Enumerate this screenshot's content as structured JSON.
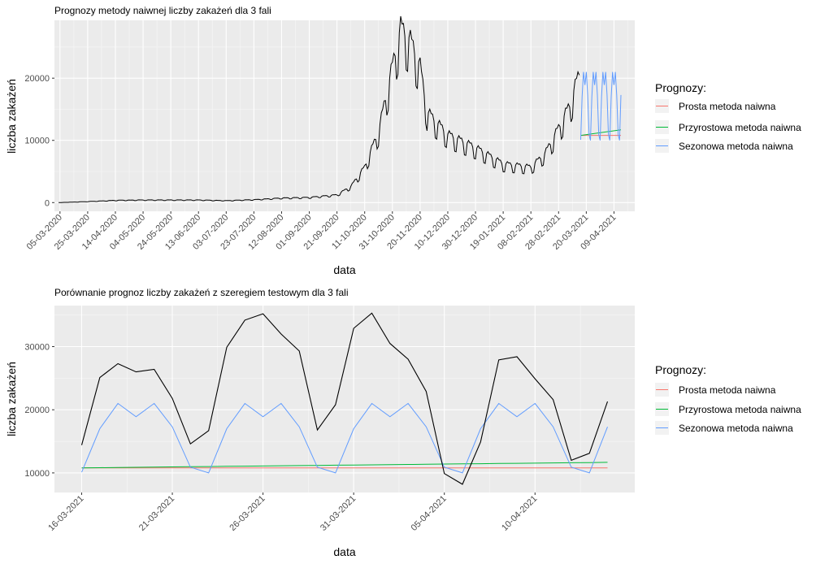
{
  "chart_data": [
    {
      "type": "line",
      "title": "Prognozy metody naiwnej liczby zakażeń dla  3  fali",
      "xlabel": "data",
      "ylabel": "liczba zakażeń",
      "xlim": [
        "2020-03-01",
        "2021-04-24"
      ],
      "ylim": [
        -1400,
        29300
      ],
      "yticks": [
        0,
        10000,
        20000
      ],
      "ytick_labels": [
        "0",
        "10000",
        "20000"
      ],
      "xticks": [
        "2020-03-05",
        "2020-03-25",
        "2020-04-14",
        "2020-05-04",
        "2020-05-24",
        "2020-06-13",
        "2020-07-03",
        "2020-07-23",
        "2020-08-12",
        "2020-09-01",
        "2020-09-21",
        "2020-10-11",
        "2020-10-31",
        "2020-11-20",
        "2020-12-10",
        "2020-12-30",
        "2021-01-19",
        "2021-02-08",
        "2021-02-28",
        "2021-03-20",
        "2021-04-09"
      ],
      "xtick_labels": [
        "05-03-2020",
        "25-03-2020",
        "14-04-2020",
        "04-05-2020",
        "24-05-2020",
        "13-06-2020",
        "03-07-2020",
        "23-07-2020",
        "12-08-2020",
        "01-09-2020",
        "21-09-2020",
        "11-10-2020",
        "31-10-2020",
        "20-11-2020",
        "10-12-2020",
        "30-12-2020",
        "19-01-2021",
        "08-02-2021",
        "28-02-2021",
        "20-03-2021",
        "09-04-2021"
      ],
      "grid": true,
      "legend_title": "Prognozy:",
      "legend_position": "right",
      "observed": {
        "color": "#000000",
        "start": "2020-03-04",
        "end": "2021-03-15",
        "anchors": [
          [
            "2020-03-04",
            0
          ],
          [
            "2020-03-25",
            150
          ],
          [
            "2020-04-14",
            350
          ],
          [
            "2020-05-04",
            400
          ],
          [
            "2020-05-24",
            400
          ],
          [
            "2020-06-13",
            400
          ],
          [
            "2020-07-03",
            300
          ],
          [
            "2020-07-23",
            450
          ],
          [
            "2020-08-12",
            700
          ],
          [
            "2020-09-01",
            800
          ],
          [
            "2020-09-21",
            1200
          ],
          [
            "2020-10-01",
            2500
          ],
          [
            "2020-10-11",
            5500
          ],
          [
            "2020-10-21",
            11000
          ],
          [
            "2020-10-31",
            21000
          ],
          [
            "2020-11-06",
            27000
          ],
          [
            "2020-11-13",
            25000
          ],
          [
            "2020-11-20",
            21000
          ],
          [
            "2020-11-25",
            14000
          ],
          [
            "2020-12-10",
            10500
          ],
          [
            "2020-12-30",
            8500
          ],
          [
            "2021-01-19",
            6000
          ],
          [
            "2021-02-08",
            5500
          ],
          [
            "2021-02-18",
            7500
          ],
          [
            "2021-02-28",
            11500
          ],
          [
            "2021-03-08",
            15000
          ],
          [
            "2021-03-15",
            20000
          ]
        ],
        "weekly_amplitude": 0.25
      },
      "series": [
        {
          "name": "Prosta metoda naiwna",
          "color": "#f8766d",
          "start": "2021-03-16",
          "end": "2021-04-14",
          "values": [
            10800,
            10800
          ]
        },
        {
          "name": "Przyrostowa metoda naiwna",
          "color": "#00ba38",
          "start": "2021-03-16",
          "end": "2021-04-14",
          "values": [
            10800,
            11700
          ]
        },
        {
          "name": "Sezonowa metoda naiwna",
          "color": "#619cff",
          "start": "2021-03-16",
          "end": "2021-04-14",
          "values": [
            10100,
            17000,
            21000,
            18900,
            21000,
            17300,
            10900,
            10000,
            17000,
            21000,
            18900,
            21000,
            17300,
            10900,
            10000,
            17000,
            21000,
            18900,
            21000,
            17300,
            10900,
            10000,
            17000,
            21000,
            18900,
            21000,
            17300,
            10900,
            10000,
            17300
          ]
        }
      ]
    },
    {
      "type": "line",
      "title": "Porównanie prognoz liczby zakażeń z szeregiem testowym dla  3  fali",
      "xlabel": "data",
      "ylabel": "liczba zakażeń",
      "xlim": [
        "2021-03-14.5",
        "2021-04-15.5"
      ],
      "ylim": [
        6900,
        36500
      ],
      "yticks": [
        10000,
        20000,
        30000
      ],
      "ytick_labels": [
        "10000",
        "20000",
        "30000"
      ],
      "xticks": [
        "2021-03-16",
        "2021-03-21",
        "2021-03-26",
        "2021-03-31",
        "2021-04-05",
        "2021-04-10"
      ],
      "xtick_labels": [
        "16-03-2021",
        "21-03-2021",
        "26-03-2021",
        "31-03-2021",
        "05-04-2021",
        "10-04-2021"
      ],
      "grid": true,
      "legend_title": "Prognozy:",
      "legend_position": "right",
      "dates": [
        "2021-03-16",
        "2021-03-17",
        "2021-03-18",
        "2021-03-19",
        "2021-03-20",
        "2021-03-21",
        "2021-03-22",
        "2021-03-23",
        "2021-03-24",
        "2021-03-25",
        "2021-03-26",
        "2021-03-27",
        "2021-03-28",
        "2021-03-29",
        "2021-03-30",
        "2021-03-31",
        "2021-04-01",
        "2021-04-02",
        "2021-04-03",
        "2021-04-04",
        "2021-04-05",
        "2021-04-06",
        "2021-04-07",
        "2021-04-08",
        "2021-04-09",
        "2021-04-10",
        "2021-04-11",
        "2021-04-12",
        "2021-04-13",
        "2021-04-14"
      ],
      "observed": {
        "color": "#000000",
        "values": [
          14400,
          25100,
          27300,
          26000,
          26400,
          21800,
          14600,
          16700,
          29900,
          34200,
          35200,
          32000,
          29300,
          16800,
          20800,
          32900,
          35300,
          30500,
          28000,
          22900,
          9900,
          8200,
          14900,
          27900,
          28400,
          24900,
          21600,
          12000,
          13100,
          21300
        ]
      },
      "series": [
        {
          "name": "Prosta metoda naiwna",
          "color": "#f8766d",
          "values": [
            10800,
            10800,
            10800,
            10800,
            10800,
            10800,
            10800,
            10800,
            10800,
            10800,
            10800,
            10800,
            10800,
            10800,
            10800,
            10800,
            10800,
            10800,
            10800,
            10800,
            10800,
            10800,
            10800,
            10800,
            10800,
            10800,
            10800,
            10800,
            10800,
            10800
          ]
        },
        {
          "name": "Przyrostowa metoda naiwna",
          "color": "#00ba38",
          "values": [
            10800,
            10830,
            10860,
            10890,
            10920,
            10950,
            10980,
            11010,
            11040,
            11070,
            11100,
            11130,
            11160,
            11190,
            11220,
            11250,
            11280,
            11310,
            11340,
            11370,
            11400,
            11430,
            11460,
            11490,
            11520,
            11550,
            11580,
            11610,
            11640,
            11670
          ]
        },
        {
          "name": "Sezonowa metoda naiwna",
          "color": "#619cff",
          "values": [
            10100,
            17000,
            21000,
            18900,
            21000,
            17300,
            10900,
            10000,
            17000,
            21000,
            18900,
            21000,
            17300,
            10900,
            10000,
            17000,
            21000,
            18900,
            21000,
            17300,
            10900,
            10000,
            17000,
            21000,
            18900,
            21000,
            17300,
            10900,
            10000,
            17300
          ]
        }
      ]
    }
  ]
}
